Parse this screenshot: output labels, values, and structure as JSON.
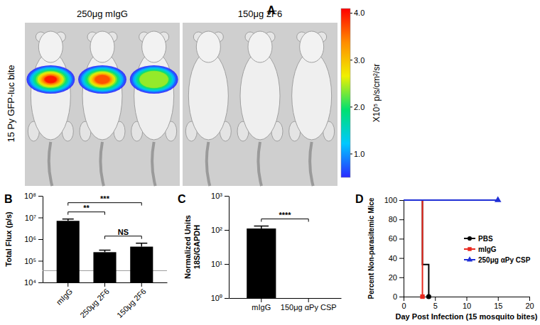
{
  "chart_data": [
    {
      "type": "image",
      "panel": "A",
      "side_label": "15 Py GFP-luc bite",
      "groups": [
        {
          "label": "250μg mIgG",
          "peak": [
            4.0,
            3.7,
            2.4
          ]
        },
        {
          "label": "150μg 2F6",
          "peak": [
            null,
            null,
            null
          ]
        }
      ],
      "colorbar": {
        "range": [
          0.5,
          4.1
        ],
        "ticks": [
          {
            "value": 1,
            "label": "1.0"
          },
          {
            "value": 2,
            "label": "2.0"
          },
          {
            "value": 3,
            "label": "3.0"
          },
          {
            "value": 4,
            "label": "4.0"
          }
        ],
        "label": "X10⁵ p/s/cm²/sr"
      }
    },
    {
      "type": "bar",
      "panel": "B",
      "y_label": "Total Flux (p/s)",
      "categories": [
        "mIgG",
        "250μg 2F6",
        "150μg 2F6"
      ],
      "values": [
        7000000,
        250000,
        450000
      ],
      "errors": [
        1500000,
        60000,
        200000
      ],
      "color": "#000000",
      "log": "y",
      "ylim": [
        10000,
        100000000
      ],
      "yticks": [
        {
          "value": 10000,
          "label": "10⁴"
        },
        {
          "value": 100000,
          "label": "10⁵"
        },
        {
          "value": 1000000,
          "label": "10⁶"
        },
        {
          "value": 10000000,
          "label": "10⁷"
        },
        {
          "value": 100000000,
          "label": "10⁸"
        }
      ],
      "threshold": 35000,
      "comparisons": [
        {
          "groups": [
            0,
            1
          ],
          "label": "**"
        },
        {
          "groups": [
            0,
            2
          ],
          "label": "***"
        },
        {
          "groups": [
            1,
            2
          ],
          "label": "NS"
        }
      ]
    },
    {
      "type": "bar",
      "panel": "C",
      "y_label": [
        "Normalized Units",
        "18S/GAPDH"
      ],
      "categories": [
        "mIgG",
        "150μg αPy CSP"
      ],
      "values": [
        110,
        null
      ],
      "errors": [
        20,
        null
      ],
      "color": "#000000",
      "log": "y",
      "ylim": [
        1,
        1000
      ],
      "yticks": [
        {
          "value": 1,
          "label": "10⁰"
        },
        {
          "value": 10,
          "label": "10¹"
        },
        {
          "value": 100,
          "label": "10²"
        },
        {
          "value": 1000,
          "label": "10³"
        }
      ],
      "comparisons": [
        {
          "groups": [
            0,
            1
          ],
          "label": "****"
        }
      ]
    },
    {
      "type": "line",
      "panel": "D",
      "x_label": "Day Post Infection (15 mosquito bites)",
      "y_label": "Percent Non-parasitemic Mice",
      "line_style": "step",
      "xlim": [
        0,
        20
      ],
      "xticks": [
        0,
        5,
        10,
        15,
        20
      ],
      "ylim": [
        0,
        100
      ],
      "yticks": [
        0,
        20,
        40,
        60,
        80,
        100
      ],
      "legend": "right",
      "series": [
        {
          "name": "PBS",
          "color": "#000000",
          "marker": "circle",
          "x": [
            0,
            3,
            4
          ],
          "values": [
            100,
            33.3,
            0
          ]
        },
        {
          "name": "mIgG",
          "color": "#e8281e",
          "marker": "square",
          "x": [
            0,
            3
          ],
          "values": [
            100,
            0
          ]
        },
        {
          "name": "250μg αPy CSP",
          "color": "#1f2fd6",
          "marker": "triangle",
          "x": [
            0,
            15
          ],
          "values": [
            100,
            100
          ]
        }
      ]
    }
  ]
}
